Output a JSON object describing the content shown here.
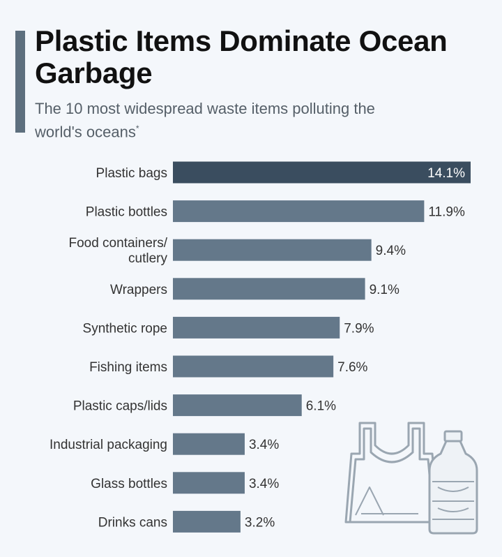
{
  "header": {
    "title": "Plastic Items Dominate Ocean Garbage",
    "subtitle": "The 10 most widespread waste items polluting the world's oceans",
    "subtitle_mark": "*"
  },
  "colors": {
    "highlight_bar": "#3a4d5f",
    "bar": "#64788a",
    "accent": "#5d6f7e",
    "background": "#f4f7fb"
  },
  "illustration": {
    "icons": [
      "plastic-bag-icon",
      "plastic-bottle-icon"
    ]
  },
  "chart_data": {
    "type": "bar",
    "orientation": "horizontal",
    "categories": [
      "Plastic bags",
      "Plastic bottles",
      "Food containers/ cutlery",
      "Wrappers",
      "Synthetic rope",
      "Fishing items",
      "Plastic caps/lids",
      "Industrial packaging",
      "Glass bottles",
      "Drinks cans"
    ],
    "values": [
      14.1,
      11.9,
      9.4,
      9.1,
      7.9,
      7.6,
      6.1,
      3.4,
      3.4,
      3.2
    ],
    "value_labels": [
      "14.1%",
      "11.9%",
      "9.4%",
      "9.1%",
      "7.9%",
      "7.6%",
      "6.1%",
      "3.4%",
      "3.4%",
      "3.2%"
    ],
    "unit": "%",
    "xlim": [
      0,
      14.1
    ],
    "grid": false,
    "legend": "none"
  }
}
